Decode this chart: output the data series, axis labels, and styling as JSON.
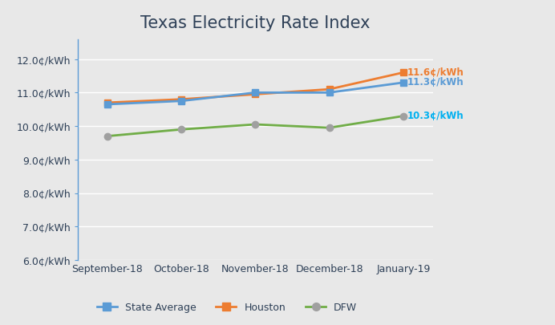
{
  "title": "Texas Electricity Rate Index",
  "categories": [
    "September-18",
    "October-18",
    "November-18",
    "December-18",
    "January-19"
  ],
  "series": {
    "State Average": {
      "values": [
        10.65,
        10.75,
        11.0,
        11.0,
        11.3
      ],
      "color": "#5b9bd5",
      "marker": "s",
      "marker_color": "#5b9bd5",
      "end_label": "11.3¢/kWh",
      "label_color": "#5b9bd5"
    },
    "Houston": {
      "values": [
        10.7,
        10.8,
        10.95,
        11.1,
        11.6
      ],
      "color": "#ed7d31",
      "marker": "s",
      "marker_color": "#ed7d31",
      "end_label": "11.6¢/kWh",
      "label_color": "#ed7d31"
    },
    "DFW": {
      "values": [
        9.7,
        9.9,
        10.05,
        9.95,
        10.3
      ],
      "color": "#70ad47",
      "marker": "o",
      "marker_color": "#a0a0a0",
      "end_label": "10.3¢/kWh",
      "label_color": "#00b0f0"
    }
  },
  "series_order": [
    "Houston",
    "State Average",
    "DFW"
  ],
  "ylim": [
    6.0,
    12.6
  ],
  "yticks": [
    6.0,
    7.0,
    8.0,
    9.0,
    10.0,
    11.0,
    12.0
  ],
  "background_color": "#e8e8e8",
  "title_color": "#2e4057",
  "title_fontsize": 15,
  "axis_label_color": "#2e4057",
  "grid_color": "#ffffff",
  "left_spine_color": "#5b9bd5",
  "legend_labels": [
    "State Average",
    "Houston",
    "DFW"
  ],
  "legend_colors": [
    "#5b9bd5",
    "#ed7d31",
    "#70ad47"
  ],
  "legend_markers": [
    "s",
    "s",
    "o"
  ],
  "legend_marker_colors": [
    "#5b9bd5",
    "#ed7d31",
    "#a0a0a0"
  ]
}
